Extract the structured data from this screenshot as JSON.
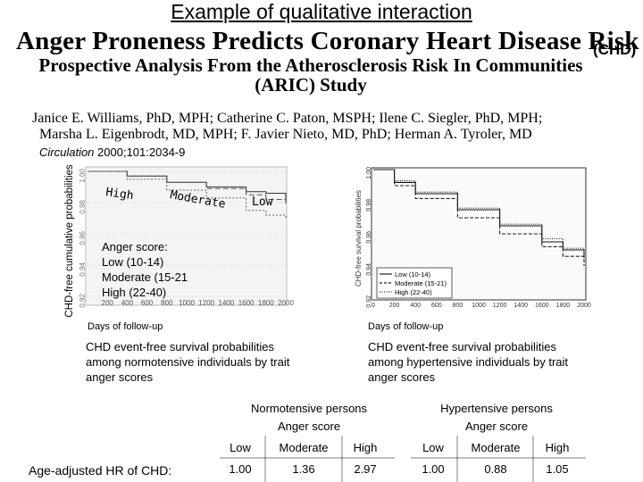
{
  "slide": {
    "title": "Example of qualitative interaction"
  },
  "paper": {
    "title": "Anger Proneness Predicts Coronary Heart Disease Risk",
    "title_tag": "(CHD)",
    "subtitle_line1": "Prospective Analysis From the Atherosclerosis Risk In Communities",
    "subtitle_line2": "(ARIC) Study",
    "authors_line1": "Janice E. Williams, PhD, MPH; Catherine C. Paton, MSPH; Ilene C. Siegler, PhD, MPH;",
    "authors_line2": "Marsha L. Eigenbrodt, MD, MPH; F. Javier Nieto, MD, PhD; Herman A. Tyroler, MD",
    "journal": "Circulation",
    "citation_rest": "2000;101:2034-9"
  },
  "left_plot": {
    "y_axis_label": "CHD-free cumulative probabilities",
    "y_ticks": [
      "1.00",
      "0.98",
      "0.96",
      "0.94",
      "0.92"
    ],
    "x_ticks": [
      "200",
      "400",
      "600",
      "800",
      "1000",
      "1200",
      "1400",
      "1600",
      "1800",
      "2000"
    ],
    "x_label": "Days of follow-up",
    "label_high": "High",
    "label_moderate": "Moderate",
    "label_low": "Low",
    "legend_title": "Anger score:",
    "legend_low": "Low (10-14)",
    "legend_moderate": "Moderate (15-21",
    "legend_high": "High (22-40)",
    "caption_line1": "CHD event-free survival probabilities",
    "caption_line2": "among normotensive individuals by trait",
    "caption_line3": "anger scores"
  },
  "right_plot": {
    "y_axis_label": "CHD-free survival probabilities",
    "y_ticks": [
      "1.00",
      "0.98",
      "0.96",
      "0.94",
      "0.92"
    ],
    "x_ticks": [
      "0",
      "200",
      "400",
      "600",
      "800",
      "1000",
      "1200",
      "1400",
      "1600",
      "1800",
      "2000"
    ],
    "x_label": "Days of follow-up",
    "legend_low": "Low  (10-14)",
    "legend_moderate": "Moderate  (15-21)",
    "legend_high": "High  (22-40)",
    "caption_line1": "CHD event-free survival probabilities",
    "caption_line2": "among hypertensive  individuals by trait",
    "caption_line3": "anger scores"
  },
  "hr_table": {
    "row_label": "Age-adjusted HR of CHD:",
    "groups": [
      {
        "name": "Normotensive persons",
        "subheader": "Anger score",
        "columns": [
          "Low",
          "Moderate",
          "High"
        ],
        "values": [
          "1.00",
          "1.36",
          "2.97"
        ]
      },
      {
        "name": "Hypertensive persons",
        "subheader": "Anger score",
        "columns": [
          "Low",
          "Moderate",
          "High"
        ],
        "values": [
          "1.00",
          "0.88",
          "1.05"
        ]
      }
    ]
  },
  "chart_data": [
    {
      "type": "line",
      "title": "CHD event-free survival probabilities among normotensive individuals by trait anger scores",
      "xlabel": "Days of follow-up",
      "ylabel": "CHD-free cumulative probabilities",
      "xlim": [
        0,
        2000
      ],
      "ylim": [
        0.92,
        1.0
      ],
      "series": [
        {
          "name": "Low (10-14)",
          "x": [
            0,
            400,
            800,
            1200,
            1600,
            1800,
            2000
          ],
          "y": [
            1.0,
            0.997,
            0.993,
            0.99,
            0.987,
            0.986,
            0.981
          ]
        },
        {
          "name": "Moderate (15-21",
          "x": [
            0,
            400,
            800,
            1200,
            1600,
            1800,
            2000
          ],
          "y": [
            1.0,
            0.997,
            0.993,
            0.989,
            0.985,
            0.982,
            0.979
          ]
        },
        {
          "name": "High (22-40)",
          "x": [
            0,
            400,
            800,
            1200,
            1600,
            1800,
            2000
          ],
          "y": [
            1.0,
            0.995,
            0.988,
            0.983,
            0.975,
            0.972,
            0.97
          ]
        }
      ]
    },
    {
      "type": "line",
      "title": "CHD event-free survival probabilities among hypertensive individuals by trait anger scores",
      "xlabel": "Days of follow-up",
      "ylabel": "CHD-free survival probabilities",
      "xlim": [
        0,
        2000
      ],
      "ylim": [
        0.92,
        1.0
      ],
      "series": [
        {
          "name": "Low  (10-14)",
          "x": [
            0,
            200,
            400,
            800,
            1200,
            1600,
            1800,
            2000
          ],
          "y": [
            1.0,
            0.992,
            0.985,
            0.975,
            0.965,
            0.955,
            0.95,
            0.945
          ]
        },
        {
          "name": "Moderate  (15-21)",
          "x": [
            0,
            200,
            400,
            800,
            1200,
            1600,
            1800,
            2000
          ],
          "y": [
            1.0,
            0.99,
            0.982,
            0.97,
            0.96,
            0.952,
            0.946,
            0.94
          ]
        },
        {
          "name": "High  (22-40)",
          "x": [
            0,
            200,
            400,
            800,
            1200,
            1600,
            1800,
            2000
          ],
          "y": [
            1.0,
            0.993,
            0.986,
            0.976,
            0.966,
            0.957,
            0.951,
            0.946
          ]
        }
      ]
    }
  ]
}
